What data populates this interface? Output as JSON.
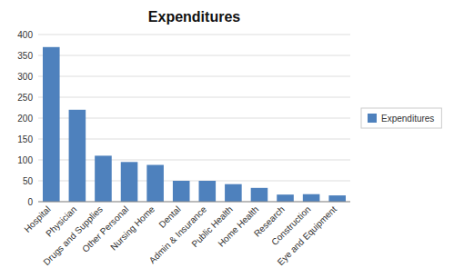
{
  "chart_data": {
    "type": "bar",
    "title": "Expenditures",
    "categories": [
      "Hospital",
      "Physician",
      "Drugs and Supplies",
      "Other Personal",
      "Nursing Home",
      "Dental",
      "Admin & Insurance",
      "Public Health",
      "Home Health",
      "Research",
      "Construction",
      "Eye and Equipment"
    ],
    "series": [
      {
        "name": "Expenditures",
        "color": "#4E81BD",
        "values": [
          370,
          220,
          110,
          95,
          88,
          50,
          50,
          42,
          33,
          17,
          18,
          15
        ]
      }
    ],
    "ylim": [
      0,
      400
    ],
    "yticks": [
      0,
      50,
      100,
      150,
      200,
      250,
      300,
      350,
      400
    ],
    "grid": true,
    "legend": "right"
  }
}
